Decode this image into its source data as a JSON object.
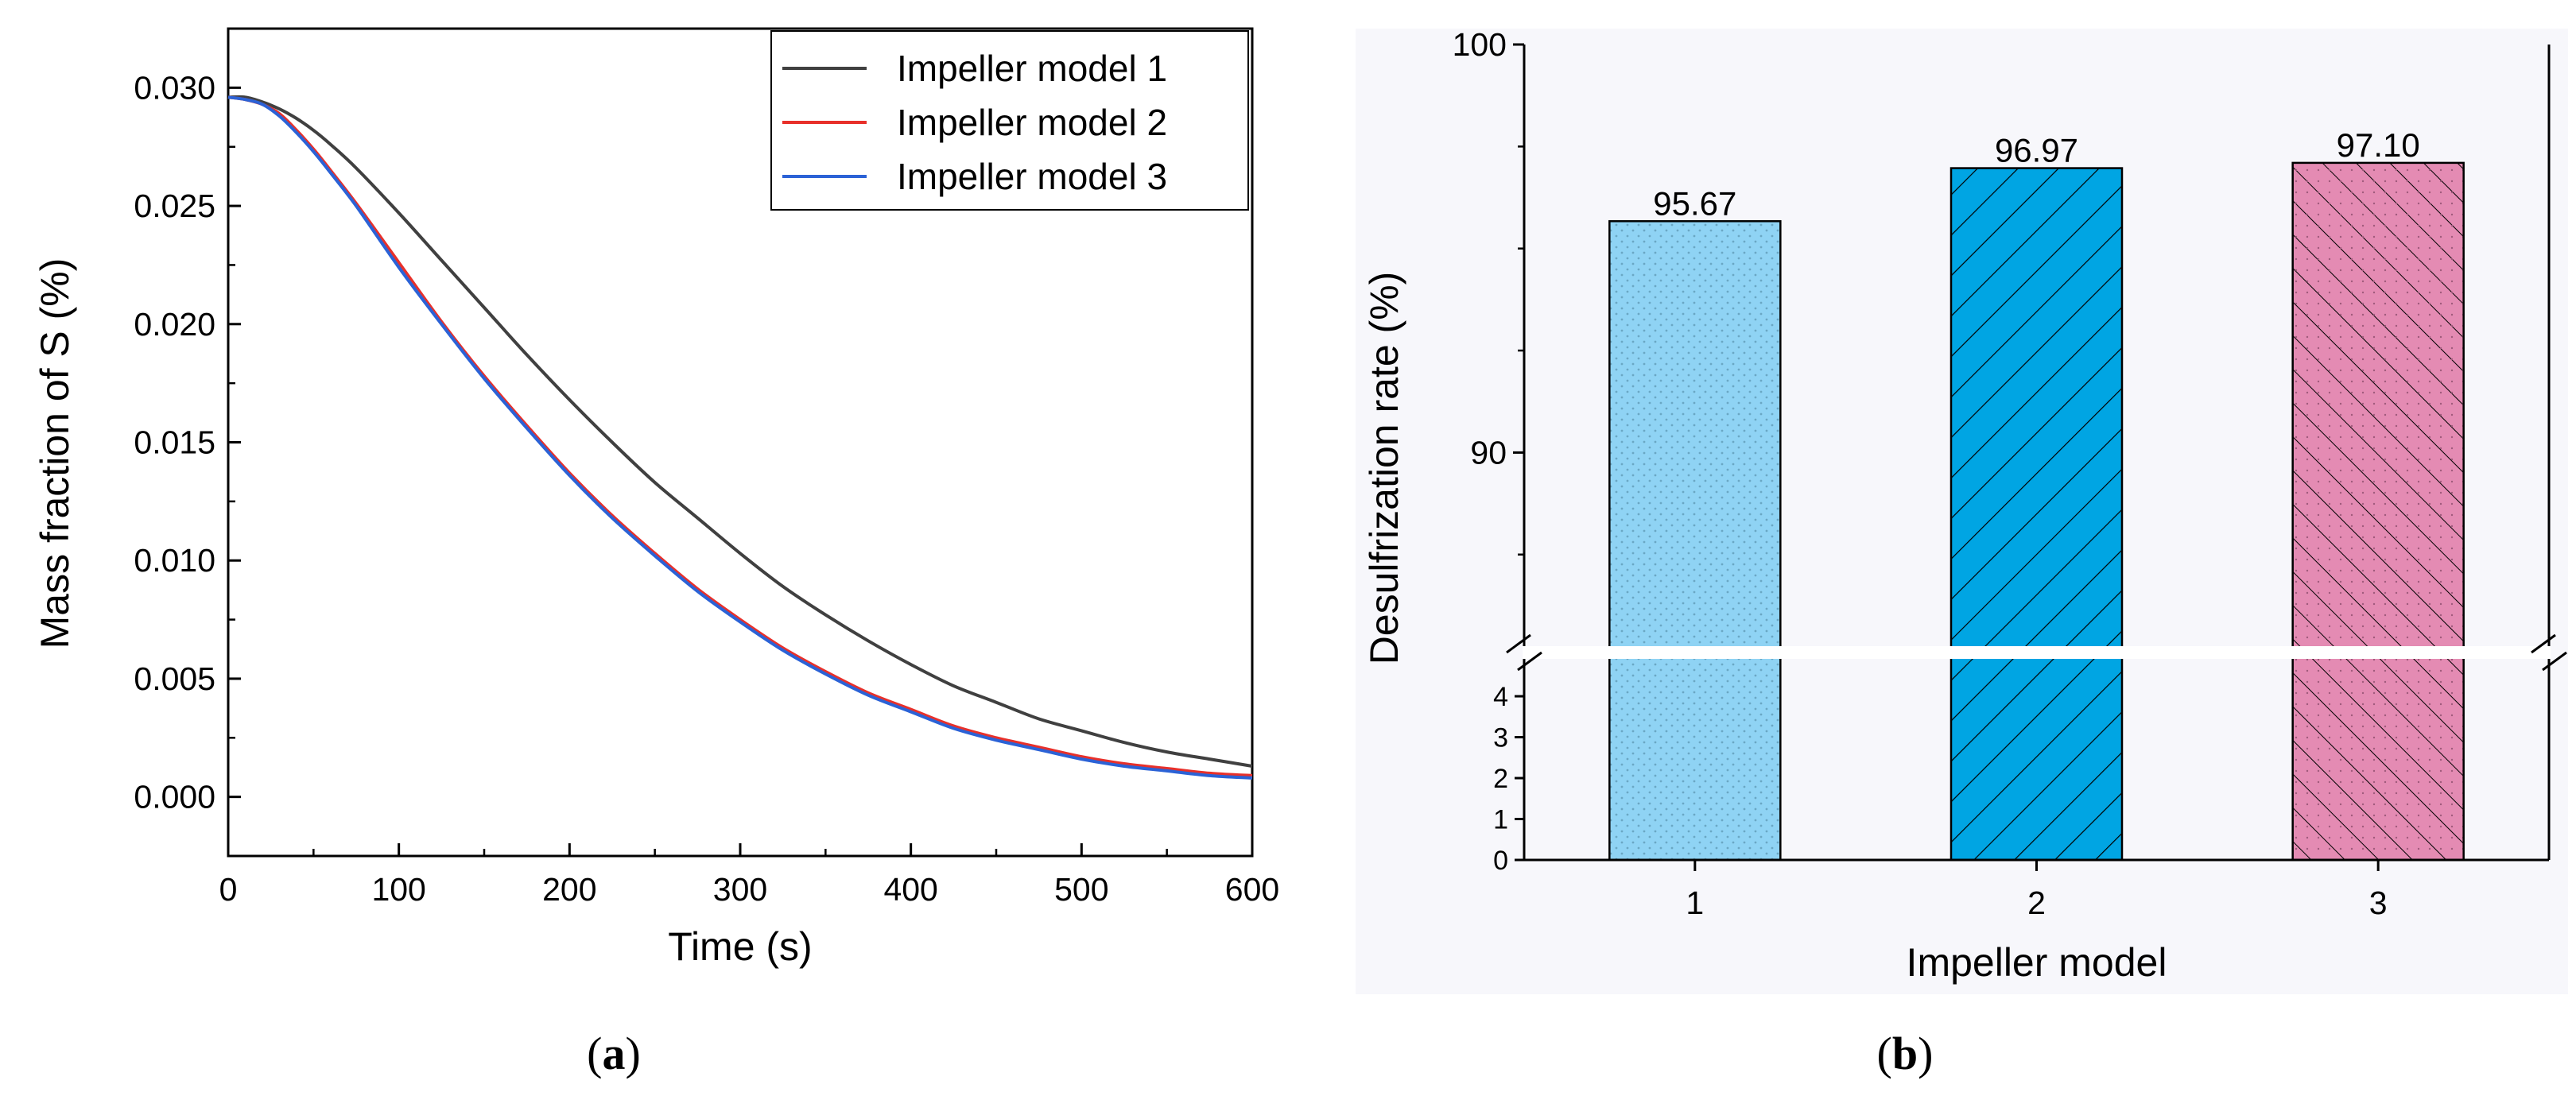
{
  "panels": {
    "a_label": "a",
    "b_label": "b"
  },
  "chart_data": [
    {
      "id": "a",
      "type": "line",
      "xlabel": "Time (s)",
      "ylabel": "Mass fraction of S (%)",
      "xlim": [
        0,
        600
      ],
      "ylim": [
        -0.0025,
        0.0325
      ],
      "xticks": [
        "0",
        "100",
        "200",
        "300",
        "400",
        "500",
        "600"
      ],
      "yticks": [
        "0.000",
        "0.005",
        "0.010",
        "0.015",
        "0.020",
        "0.025",
        "0.030"
      ],
      "x": [
        0,
        10,
        20,
        30,
        40,
        50,
        60,
        75,
        100,
        125,
        150,
        175,
        200,
        225,
        250,
        275,
        300,
        325,
        350,
        375,
        400,
        425,
        450,
        475,
        500,
        525,
        550,
        575,
        600
      ],
      "series": [
        {
          "name": "Impeller model 1",
          "color": "#404040",
          "values": [
            0.0296,
            0.0296,
            0.0294,
            0.0291,
            0.0287,
            0.0282,
            0.0276,
            0.0266,
            0.0247,
            0.0227,
            0.0207,
            0.0187,
            0.0168,
            0.015,
            0.0133,
            0.0118,
            0.0103,
            0.0089,
            0.0077,
            0.0066,
            0.0056,
            0.0047,
            0.004,
            0.0033,
            0.0028,
            0.0023,
            0.0019,
            0.0016,
            0.0013
          ]
        },
        {
          "name": "Impeller model 2",
          "color": "#e8302a",
          "values": [
            0.0296,
            0.0295,
            0.0293,
            0.0289,
            0.0282,
            0.0274,
            0.0265,
            0.0251,
            0.0226,
            0.0201,
            0.0178,
            0.0157,
            0.0137,
            0.0119,
            0.0103,
            0.0088,
            0.0075,
            0.0063,
            0.0053,
            0.0044,
            0.0037,
            0.003,
            0.0025,
            0.0021,
            0.0017,
            0.0014,
            0.0012,
            0.001,
            0.0009
          ]
        },
        {
          "name": "Impeller model 3",
          "color": "#2b62d6",
          "values": [
            0.0296,
            0.0295,
            0.0293,
            0.0288,
            0.0281,
            0.0273,
            0.0264,
            0.025,
            0.0224,
            0.02,
            0.0177,
            0.0156,
            0.0136,
            0.0118,
            0.0102,
            0.0087,
            0.0074,
            0.0062,
            0.0052,
            0.0043,
            0.0036,
            0.0029,
            0.0024,
            0.002,
            0.0016,
            0.0013,
            0.0011,
            0.0009,
            0.0008
          ]
        }
      ],
      "legend": "top-right"
    },
    {
      "id": "b",
      "type": "bar",
      "xlabel": "Impeller model",
      "ylabel": "Desulfrization rate (%)",
      "categories": [
        "1",
        "2",
        "3"
      ],
      "values": [
        95.67,
        96.97,
        97.1
      ],
      "value_labels": [
        "95.67",
        "96.97",
        "97.10"
      ],
      "bar_colors": [
        "#8fd3f4",
        "#00a5e3",
        "#e48bb3"
      ],
      "patterns": [
        "dots",
        "diagonal-forward",
        "diagonal-back"
      ],
      "ylim_upper": [
        85.45,
        100
      ],
      "ylim_lower": [
        0,
        4.7
      ],
      "yticks_upper": [
        "90",
        "100"
      ],
      "yticks_lower": [
        "0",
        "1",
        "2",
        "3",
        "4"
      ],
      "axis_break": true
    }
  ]
}
